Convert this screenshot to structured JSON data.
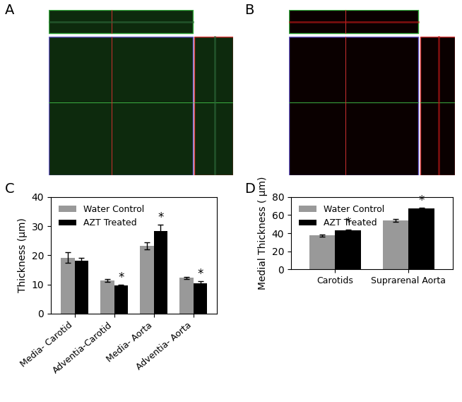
{
  "panel_labels": [
    "A",
    "B",
    "C",
    "D"
  ],
  "chart_data": [
    {
      "type": "bar",
      "y_label": "Thickness (μm)",
      "categories": [
        "Media- Carotid",
        "Adventia-Carotid",
        "Media- Aorta",
        "Adventia- Aorta"
      ],
      "series": [
        {
          "name": "Water Control",
          "color": "#999999",
          "values": [
            19.2,
            11.3,
            23.2,
            12.2
          ],
          "errors": [
            1.8,
            0.5,
            1.2,
            0.4
          ]
        },
        {
          "name": "AZT Treated",
          "color": "#000000",
          "values": [
            18.2,
            9.6,
            28.3,
            10.5
          ],
          "errors": [
            0.8,
            0.2,
            2.1,
            0.5
          ]
        }
      ],
      "ylim": [
        0,
        40
      ],
      "yticks": [
        0,
        10,
        20,
        30,
        40
      ],
      "legend": "upper left",
      "annotations": [
        {
          "text": "*",
          "category": "Adventia-Carotid",
          "series": "AZT Treated"
        },
        {
          "text": "*",
          "category": "Media- Aorta",
          "series": "AZT Treated"
        },
        {
          "text": "*",
          "category": "Adventia- Aorta",
          "series": "AZT Treated"
        }
      ]
    },
    {
      "type": "bar",
      "y_label": "Medial Thickness ( μm)",
      "categories": [
        "Carotids",
        "Suprarenal Aorta"
      ],
      "series": [
        {
          "name": "Water Control",
          "color": "#999999",
          "values": [
            37.3,
            54.0
          ],
          "errors": [
            1.5,
            1.3
          ]
        },
        {
          "name": "AZT Treated",
          "color": "#000000",
          "values": [
            43.0,
            67.0
          ],
          "errors": [
            0.6,
            1.0
          ]
        }
      ],
      "ylim": [
        0,
        80
      ],
      "yticks": [
        0,
        20,
        40,
        60,
        80
      ],
      "legend": "upper left",
      "annotations": [
        {
          "text": "*",
          "category": "Carotids",
          "series": "AZT Treated"
        },
        {
          "text": "*",
          "category": "Suprarenal Aorta",
          "series": "AZT Treated"
        }
      ]
    }
  ]
}
